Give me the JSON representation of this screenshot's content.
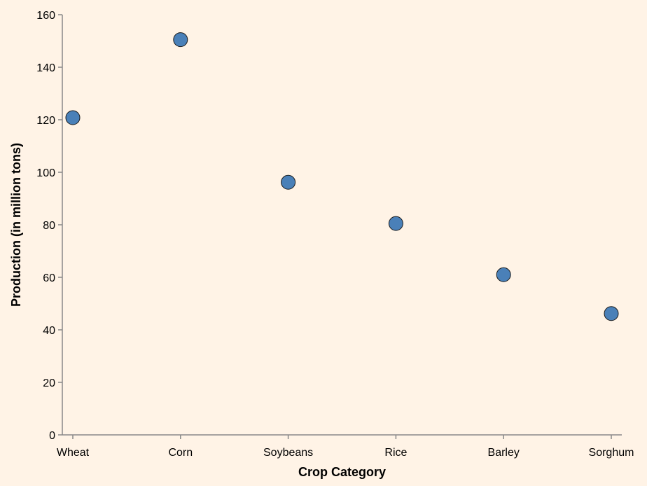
{
  "chart_data": {
    "type": "scatter",
    "categories": [
      "Wheat",
      "Corn",
      "Soybeans",
      "Rice",
      "Barley",
      "Sorghum"
    ],
    "values": [
      120.8,
      150.5,
      96.2,
      80.5,
      61.0,
      46.2
    ],
    "title": "",
    "xlabel": "Crop Category",
    "ylabel": "Production (in million tons)",
    "ylim": [
      0,
      160
    ],
    "yticks": [
      0,
      20,
      40,
      60,
      80,
      100,
      120,
      140,
      160
    ],
    "grid": false,
    "legend": "none",
    "colors": {
      "point_fill": "#4a80b8",
      "point_stroke": "#1a1a1a",
      "axis": "#888888",
      "background": "#fff3e6"
    }
  }
}
